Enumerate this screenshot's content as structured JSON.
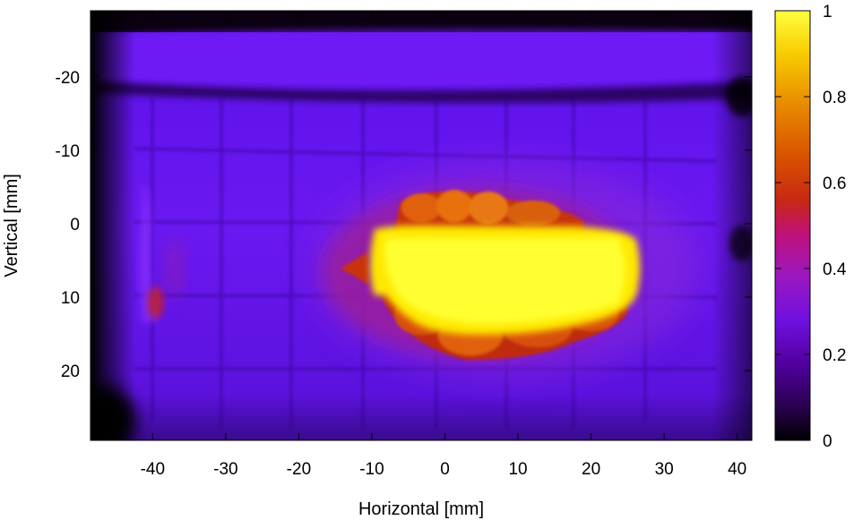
{
  "chart_data": {
    "type": "heatmap",
    "title": "",
    "xlabel": "Horizontal [mm]",
    "ylabel": "Vertical [mm]",
    "xlim": [
      -48.5,
      42
    ],
    "ylim": [
      -29,
      29.5
    ],
    "y_inverted": true,
    "xticks": [
      -40,
      -30,
      -20,
      -10,
      0,
      10,
      20,
      30,
      40
    ],
    "yticks": [
      -20,
      -10,
      0,
      10,
      20
    ],
    "colorbar": {
      "colormap": "gnuplot-hot",
      "range": [
        0,
        1
      ],
      "ticks": [
        0,
        0.2,
        0.4,
        0.6,
        0.8,
        1
      ],
      "tick_labels": [
        "0",
        "0.2",
        "0.4",
        "0.6",
        "0.8",
        "1"
      ],
      "stops": [
        "#000000",
        "#2a0050",
        "#6a00c8",
        "#8a20e8",
        "#b010a0",
        "#c41818",
        "#d85000",
        "#f0a000",
        "#ffea00",
        "#ffff33"
      ]
    },
    "features": {
      "background_level": 0.28,
      "top_band": {
        "y_range": [
          -28,
          -19.5
        ],
        "level": 0.25
      },
      "hot_core": {
        "x_range": [
          -12,
          26.5
        ],
        "y_range": [
          1,
          15
        ],
        "level": 1.0
      },
      "halo": {
        "x_range": [
          -15,
          28
        ],
        "y_range": [
          -4.5,
          18.5
        ],
        "level": 0.5
      },
      "left_edge_spot": {
        "x": -40,
        "y": 11,
        "level": 0.45
      },
      "dark_regions": [
        "left edge x<-44",
        "bottom-left corner",
        "right edge y=-18 and y=3"
      ]
    }
  }
}
